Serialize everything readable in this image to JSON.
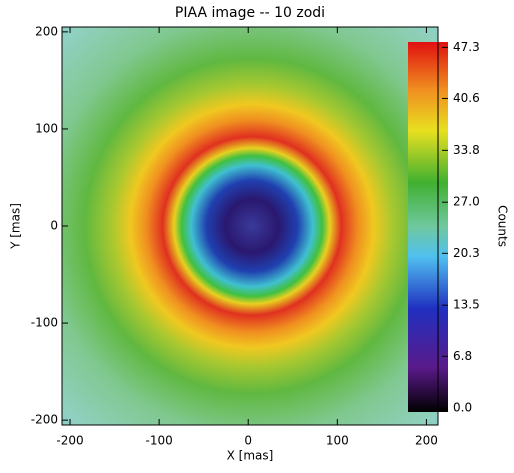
{
  "chart_data": {
    "type": "heatmap",
    "title": "PIAA image -- 10 zodi",
    "x_label": "X [mas]",
    "y_label": "Y [mas]",
    "xlim": [
      -209,
      213
    ],
    "xticks": [
      -200,
      -100,
      0,
      100,
      200
    ],
    "ylim": [
      -205,
      205
    ],
    "yticks": [
      -200,
      -100,
      0,
      100,
      200
    ],
    "colorbar_label": "Counts",
    "clim": [
      -0.5,
      48
    ],
    "cticks": [
      {
        "value": 0,
        "label": "0.0"
      },
      6.8,
      13.5,
      20.3,
      {
        "value": 27,
        "label": "27.0"
      },
      33.8,
      40.6,
      47.3
    ]
  }
}
